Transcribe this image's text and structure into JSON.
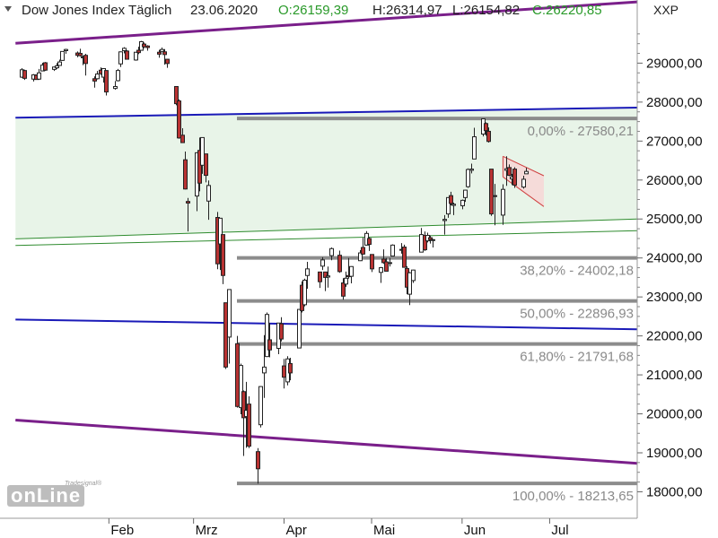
{
  "header": {
    "name": "Dow Jones Index Täglich",
    "date": "23.06.2020",
    "open": "O:26159,39",
    "high": "H:26314,97",
    "low": "L:26154,82",
    "close": "C:26220,85",
    "symbol": "XXP"
  },
  "logo": {
    "small": "Tradesignal®",
    "main": "onLine"
  },
  "colors": {
    "candle_up": "#ffffff",
    "candle_down": "#b83232",
    "trend_purple": "#7a1f8a",
    "trend_blue": "#1a1ab8",
    "trend_green": "#2e8b2e",
    "zone_fill": "#e8f4e8",
    "fib_gray": "#8c8c8c",
    "channel_red": "#d04040",
    "channel_fill": "#f7d4d4"
  },
  "chart_data": {
    "type": "candlestick",
    "title": "Dow Jones Index Täglich",
    "x_labels": [
      "Feb",
      "Mrz",
      "Apr",
      "Mai",
      "Jun",
      "Jul"
    ],
    "y_ticks": [
      "29000,00",
      "28000,00",
      "27000,00",
      "26000,00",
      "25000,00",
      "24000,00",
      "23000,00",
      "22000,00",
      "21000,00",
      "20000,00",
      "19000,00",
      "18000,00"
    ],
    "y_tick_values": [
      29000,
      28000,
      27000,
      26000,
      25000,
      24000,
      23000,
      22000,
      21000,
      20000,
      19000,
      18000
    ],
    "ylim": [
      17320,
      30620
    ],
    "fibonacci": [
      {
        "label": "0,00% - 27580,21",
        "value": 27580.21
      },
      {
        "label": "38,20% - 24002,18",
        "value": 24002.18
      },
      {
        "label": "50,00% - 22896,93",
        "value": 22896.93
      },
      {
        "label": "61,80% - 21791,68",
        "value": 21791.68
      },
      {
        "label": "100,00% - 18213,65",
        "value": 18213.65
      }
    ],
    "candles": [
      {
        "d": "2020-01-02",
        "o": 28640,
        "h": 28870,
        "l": 28620,
        "c": 28830
      },
      {
        "d": "2020-01-03",
        "o": 28810,
        "h": 28830,
        "l": 28570,
        "c": 28610
      },
      {
        "d": "2020-01-06",
        "o": 28590,
        "h": 28720,
        "l": 28530,
        "c": 28700
      },
      {
        "d": "2020-01-07",
        "o": 28690,
        "h": 28710,
        "l": 28580,
        "c": 28580
      },
      {
        "d": "2020-01-08",
        "o": 28590,
        "h": 28850,
        "l": 28570,
        "c": 28750
      },
      {
        "d": "2020-01-09",
        "o": 28800,
        "h": 29010,
        "l": 28790,
        "c": 28950
      },
      {
        "d": "2020-01-10",
        "o": 29010,
        "h": 29030,
        "l": 28800,
        "c": 28820
      },
      {
        "d": "2020-01-13",
        "o": 28840,
        "h": 28910,
        "l": 28800,
        "c": 28900
      },
      {
        "d": "2020-01-14",
        "o": 28880,
        "h": 29000,
        "l": 28850,
        "c": 28930
      },
      {
        "d": "2020-01-15",
        "o": 28940,
        "h": 29090,
        "l": 28940,
        "c": 29030
      },
      {
        "d": "2020-01-16",
        "o": 29070,
        "h": 29300,
        "l": 29060,
        "c": 29300
      },
      {
        "d": "2020-01-17",
        "o": 29320,
        "h": 29370,
        "l": 29240,
        "c": 29350
      },
      {
        "d": "2020-01-21",
        "o": 29260,
        "h": 29300,
        "l": 29150,
        "c": 29200
      },
      {
        "d": "2020-01-22",
        "o": 29250,
        "h": 29370,
        "l": 29170,
        "c": 29190
      },
      {
        "d": "2020-01-23",
        "o": 29150,
        "h": 29190,
        "l": 28950,
        "c": 29160
      },
      {
        "d": "2020-01-24",
        "o": 29200,
        "h": 29240,
        "l": 28680,
        "c": 28990
      },
      {
        "d": "2020-01-27",
        "o": 28600,
        "h": 28660,
        "l": 28370,
        "c": 28540
      },
      {
        "d": "2020-01-28",
        "o": 28600,
        "h": 28800,
        "l": 28580,
        "c": 28720
      },
      {
        "d": "2020-01-29",
        "o": 28820,
        "h": 28890,
        "l": 28700,
        "c": 28730
      },
      {
        "d": "2020-01-30",
        "o": 28640,
        "h": 28860,
        "l": 28500,
        "c": 28860
      },
      {
        "d": "2020-01-31",
        "o": 28810,
        "h": 28820,
        "l": 28170,
        "c": 28260
      },
      {
        "d": "2020-02-03",
        "o": 28350,
        "h": 28540,
        "l": 28320,
        "c": 28400
      },
      {
        "d": "2020-02-04",
        "o": 28550,
        "h": 28850,
        "l": 28530,
        "c": 28810
      },
      {
        "d": "2020-02-05",
        "o": 28980,
        "h": 29300,
        "l": 28900,
        "c": 29290
      },
      {
        "d": "2020-02-06",
        "o": 29320,
        "h": 29410,
        "l": 29250,
        "c": 29380
      },
      {
        "d": "2020-02-07",
        "o": 29310,
        "h": 29330,
        "l": 29100,
        "c": 29100
      },
      {
        "d": "2020-02-10",
        "o": 29080,
        "h": 29280,
        "l": 29060,
        "c": 29280
      },
      {
        "d": "2020-02-11",
        "o": 29330,
        "h": 29420,
        "l": 29230,
        "c": 29270
      },
      {
        "d": "2020-02-12",
        "o": 29330,
        "h": 29570,
        "l": 29330,
        "c": 29550
      },
      {
        "d": "2020-02-13",
        "o": 29490,
        "h": 29530,
        "l": 29380,
        "c": 29420
      },
      {
        "d": "2020-02-14",
        "o": 29440,
        "h": 29460,
        "l": 29320,
        "c": 29400
      },
      {
        "d": "2020-02-18",
        "o": 29280,
        "h": 29340,
        "l": 29140,
        "c": 29230
      },
      {
        "d": "2020-02-19",
        "o": 29300,
        "h": 29400,
        "l": 29300,
        "c": 29350
      },
      {
        "d": "2020-02-20",
        "o": 29290,
        "h": 29360,
        "l": 28960,
        "c": 29220
      },
      {
        "d": "2020-02-21",
        "o": 29100,
        "h": 29110,
        "l": 28880,
        "c": 28990
      },
      {
        "d": "2020-02-24",
        "o": 28400,
        "h": 28400,
        "l": 27920,
        "c": 27960
      },
      {
        "d": "2020-02-25",
        "o": 28030,
        "h": 28070,
        "l": 27060,
        "c": 27080
      },
      {
        "d": "2020-02-26",
        "o": 27150,
        "h": 27330,
        "l": 26950,
        "c": 26960
      },
      {
        "d": "2020-02-27",
        "o": 26520,
        "h": 26730,
        "l": 25760,
        "c": 25770
      },
      {
        "d": "2020-02-28",
        "o": 25450,
        "h": 25540,
        "l": 24680,
        "c": 25410
      },
      {
        "d": "2020-03-02",
        "o": 25590,
        "h": 26710,
        "l": 25200,
        "c": 26700
      },
      {
        "d": "2020-03-03",
        "o": 26760,
        "h": 27090,
        "l": 25710,
        "c": 25920
      },
      {
        "d": "2020-03-04",
        "o": 26380,
        "h": 27100,
        "l": 26160,
        "c": 27090
      },
      {
        "d": "2020-03-05",
        "o": 26670,
        "h": 26670,
        "l": 25940,
        "c": 26120
      },
      {
        "d": "2020-03-06",
        "o": 25460,
        "h": 25990,
        "l": 24980,
        "c": 25860
      },
      {
        "d": "2020-03-09",
        "o": 25040,
        "h": 25180,
        "l": 23710,
        "c": 23850
      },
      {
        "d": "2020-03-10",
        "o": 24360,
        "h": 25020,
        "l": 23690,
        "c": 25020
      },
      {
        "d": "2020-03-11",
        "o": 24600,
        "h": 24600,
        "l": 23330,
        "c": 23550
      },
      {
        "d": "2020-03-12",
        "o": 22850,
        "h": 22850,
        "l": 21150,
        "c": 21200
      },
      {
        "d": "2020-03-13",
        "o": 21970,
        "h": 23190,
        "l": 21290,
        "c": 23190
      },
      {
        "d": "2020-03-16",
        "o": 21800,
        "h": 22000,
        "l": 20160,
        "c": 20190
      },
      {
        "d": "2020-03-17",
        "o": 20160,
        "h": 21290,
        "l": 19990,
        "c": 21240
      },
      {
        "d": "2020-03-18",
        "o": 20570,
        "h": 20600,
        "l": 18920,
        "c": 19900
      },
      {
        "d": "2020-03-19",
        "o": 19930,
        "h": 20820,
        "l": 19130,
        "c": 20090
      },
      {
        "d": "2020-03-20",
        "o": 20250,
        "h": 20450,
        "l": 19120,
        "c": 19170
      },
      {
        "d": "2020-03-23",
        "o": 19030,
        "h": 19120,
        "l": 18210,
        "c": 18590
      },
      {
        "d": "2020-03-24",
        "o": 19720,
        "h": 20710,
        "l": 19650,
        "c": 20700
      },
      {
        "d": "2020-03-25",
        "o": 21050,
        "h": 22020,
        "l": 20410,
        "c": 21200
      },
      {
        "d": "2020-03-26",
        "o": 21470,
        "h": 22600,
        "l": 21460,
        "c": 22550
      },
      {
        "d": "2020-03-27",
        "o": 21900,
        "h": 22330,
        "l": 21450,
        "c": 21640
      },
      {
        "d": "2020-03-30",
        "o": 21680,
        "h": 22330,
        "l": 21530,
        "c": 22330
      },
      {
        "d": "2020-03-31",
        "o": 22310,
        "h": 22480,
        "l": 21860,
        "c": 21920
      },
      {
        "d": "2020-04-01",
        "o": 21230,
        "h": 21410,
        "l": 20650,
        "c": 20940
      },
      {
        "d": "2020-04-02",
        "o": 20820,
        "h": 21480,
        "l": 20730,
        "c": 21410
      },
      {
        "d": "2020-04-03",
        "o": 21290,
        "h": 21440,
        "l": 20860,
        "c": 21050
      },
      {
        "d": "2020-04-06",
        "o": 21690,
        "h": 22680,
        "l": 21690,
        "c": 22680
      },
      {
        "d": "2020-04-07",
        "o": 23300,
        "h": 23400,
        "l": 22600,
        "c": 22650
      },
      {
        "d": "2020-04-08",
        "o": 22800,
        "h": 23470,
        "l": 22760,
        "c": 23430
      },
      {
        "d": "2020-04-09",
        "o": 23550,
        "h": 23900,
        "l": 23210,
        "c": 23720
      },
      {
        "d": "2020-04-13",
        "o": 23640,
        "h": 23640,
        "l": 23230,
        "c": 23390
      },
      {
        "d": "2020-04-14",
        "o": 23790,
        "h": 24020,
        "l": 23690,
        "c": 23950
      },
      {
        "d": "2020-04-15",
        "o": 23640,
        "h": 23640,
        "l": 23150,
        "c": 23500
      },
      {
        "d": "2020-04-16",
        "o": 23510,
        "h": 23780,
        "l": 23240,
        "c": 23540
      },
      {
        "d": "2020-04-17",
        "o": 24060,
        "h": 24270,
        "l": 23940,
        "c": 24240
      },
      {
        "d": "2020-04-20",
        "o": 24070,
        "h": 24190,
        "l": 23620,
        "c": 23650
      },
      {
        "d": "2020-04-21",
        "o": 23360,
        "h": 23480,
        "l": 22930,
        "c": 23020
      },
      {
        "d": "2020-04-22",
        "o": 23330,
        "h": 23650,
        "l": 23260,
        "c": 23480
      },
      {
        "d": "2020-04-23",
        "o": 23550,
        "h": 24000,
        "l": 23470,
        "c": 23520
      },
      {
        "d": "2020-04-24",
        "o": 23530,
        "h": 23790,
        "l": 23350,
        "c": 23780
      },
      {
        "d": "2020-04-27",
        "o": 23930,
        "h": 24200,
        "l": 23920,
        "c": 24130
      },
      {
        "d": "2020-04-28",
        "o": 24270,
        "h": 24520,
        "l": 24080,
        "c": 24100
      },
      {
        "d": "2020-04-29",
        "o": 24330,
        "h": 24690,
        "l": 24320,
        "c": 24630
      },
      {
        "d": "2020-04-30",
        "o": 24500,
        "h": 24530,
        "l": 24180,
        "c": 24350
      },
      {
        "d": "2020-05-01",
        "o": 24090,
        "h": 24090,
        "l": 23640,
        "c": 23720
      },
      {
        "d": "2020-05-04",
        "o": 23630,
        "h": 23770,
        "l": 23360,
        "c": 23750
      },
      {
        "d": "2020-05-05",
        "o": 23970,
        "h": 24220,
        "l": 23850,
        "c": 23880
      },
      {
        "d": "2020-05-06",
        "o": 23900,
        "h": 24000,
        "l": 23650,
        "c": 23660
      },
      {
        "d": "2020-05-07",
        "o": 23870,
        "h": 24000,
        "l": 23780,
        "c": 23880
      },
      {
        "d": "2020-05-08",
        "o": 24050,
        "h": 24350,
        "l": 24040,
        "c": 24330
      },
      {
        "d": "2020-05-11",
        "o": 24220,
        "h": 24380,
        "l": 24110,
        "c": 24220
      },
      {
        "d": "2020-05-12",
        "o": 24280,
        "h": 24340,
        "l": 23760,
        "c": 23760
      },
      {
        "d": "2020-05-13",
        "o": 23730,
        "h": 23790,
        "l": 23070,
        "c": 23250
      },
      {
        "d": "2020-05-14",
        "o": 23070,
        "h": 23640,
        "l": 22790,
        "c": 23620
      },
      {
        "d": "2020-05-15",
        "o": 23420,
        "h": 23700,
        "l": 23360,
        "c": 23690
      },
      {
        "d": "2020-05-18",
        "o": 24150,
        "h": 24770,
        "l": 24150,
        "c": 24600
      },
      {
        "d": "2020-05-19",
        "o": 24580,
        "h": 24680,
        "l": 24180,
        "c": 24210
      },
      {
        "d": "2020-05-20",
        "o": 24440,
        "h": 24650,
        "l": 24400,
        "c": 24580
      },
      {
        "d": "2020-05-21",
        "o": 24520,
        "h": 24580,
        "l": 24370,
        "c": 24470
      },
      {
        "d": "2020-05-22",
        "o": 24450,
        "h": 24490,
        "l": 24270,
        "c": 24470
      },
      {
        "d": "2020-05-26",
        "o": 24960,
        "h": 25100,
        "l": 24600,
        "c": 24990
      },
      {
        "d": "2020-05-27",
        "o": 25130,
        "h": 25550,
        "l": 25030,
        "c": 25550
      },
      {
        "d": "2020-05-28",
        "o": 25600,
        "h": 25700,
        "l": 25350,
        "c": 25400
      },
      {
        "d": "2020-05-29",
        "o": 25350,
        "h": 25420,
        "l": 25100,
        "c": 25380
      },
      {
        "d": "2020-06-01",
        "o": 25340,
        "h": 25500,
        "l": 25250,
        "c": 25480
      },
      {
        "d": "2020-06-02",
        "o": 25550,
        "h": 25750,
        "l": 25440,
        "c": 25740
      },
      {
        "d": "2020-06-03",
        "o": 25830,
        "h": 26300,
        "l": 25800,
        "c": 26270
      },
      {
        "d": "2020-06-04",
        "o": 26250,
        "h": 26420,
        "l": 26170,
        "c": 26280
      },
      {
        "d": "2020-06-05",
        "o": 26540,
        "h": 27340,
        "l": 26540,
        "c": 27110
      },
      {
        "d": "2020-06-08",
        "o": 27180,
        "h": 27580,
        "l": 27120,
        "c": 27570
      },
      {
        "d": "2020-06-09",
        "o": 27450,
        "h": 27480,
        "l": 27140,
        "c": 27270
      },
      {
        "d": "2020-06-10",
        "o": 27250,
        "h": 27350,
        "l": 26960,
        "c": 26990
      },
      {
        "d": "2020-06-11",
        "o": 26280,
        "h": 26280,
        "l": 25080,
        "c": 25130
      },
      {
        "d": "2020-06-12",
        "o": 25600,
        "h": 25900,
        "l": 24840,
        "c": 25600
      },
      {
        "d": "2020-06-15",
        "o": 25100,
        "h": 25890,
        "l": 24850,
        "c": 25760
      },
      {
        "d": "2020-06-16",
        "o": 26250,
        "h": 26610,
        "l": 25850,
        "c": 26290
      },
      {
        "d": "2020-06-17",
        "o": 26320,
        "h": 26400,
        "l": 26100,
        "c": 26120
      },
      {
        "d": "2020-06-18",
        "o": 26030,
        "h": 26160,
        "l": 25870,
        "c": 26080
      },
      {
        "d": "2020-06-19",
        "o": 26280,
        "h": 26330,
        "l": 25800,
        "c": 25870
      },
      {
        "d": "2020-06-22",
        "o": 25820,
        "h": 26110,
        "l": 25780,
        "c": 26020
      },
      {
        "d": "2020-06-23",
        "o": 26159.39,
        "h": 26314.97,
        "l": 26154.82,
        "c": 26220.85
      }
    ],
    "trendlines": [
      {
        "color": "trend_purple",
        "width": 3,
        "from": [
          "2019-12-31",
          29510
        ],
        "to": [
          "2020-07-31",
          30570
        ]
      },
      {
        "color": "trend_purple",
        "width": 3,
        "from": [
          "2019-12-31",
          19840
        ],
        "to": [
          "2020-07-31",
          18730
        ]
      },
      {
        "color": "trend_blue",
        "width": 2,
        "from": [
          "2019-12-31",
          27600
        ],
        "to": [
          "2020-07-31",
          27860
        ]
      },
      {
        "color": "trend_blue",
        "width": 2,
        "from": [
          "2019-12-31",
          22420
        ],
        "to": [
          "2020-07-31",
          22170
        ]
      },
      {
        "color": "trend_green",
        "width": 1,
        "from": [
          "2019-12-31",
          24490
        ],
        "to": [
          "2020-07-31",
          25000
        ]
      },
      {
        "color": "trend_green",
        "width": 1,
        "from": [
          "2019-12-31",
          24320
        ],
        "to": [
          "2020-07-31",
          24700
        ]
      }
    ],
    "channel": [
      {
        "from": [
          "2020-06-15",
          26610
        ],
        "to": [
          "2020-06-29",
          26110
        ]
      },
      {
        "from": [
          "2020-06-15",
          26080
        ],
        "to": [
          "2020-06-29",
          25320
        ]
      }
    ]
  }
}
